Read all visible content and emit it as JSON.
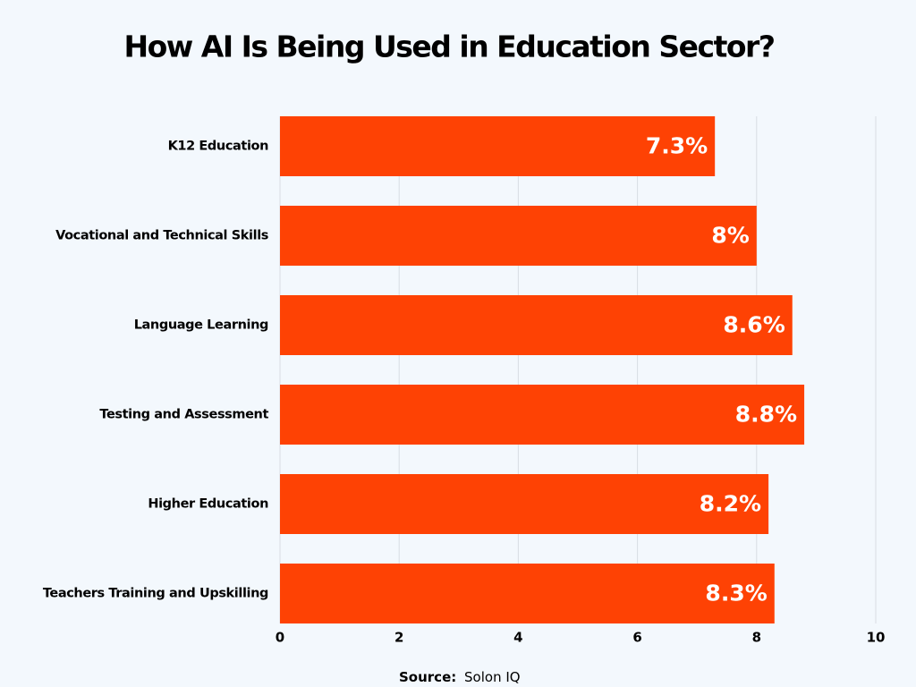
{
  "chart_data": {
    "type": "bar",
    "orientation": "horizontal",
    "title": "How AI Is Being Used in Education Sector?",
    "categories": [
      "K12 Education",
      "Vocational and Technical Skills",
      "Language Learning",
      "Testing and Assessment",
      "Higher Education",
      "Teachers Training and Upskilling"
    ],
    "values": [
      7.3,
      8,
      8.6,
      8.8,
      8.2,
      8.3
    ],
    "value_labels": [
      "7.3%",
      "8%",
      "8.6%",
      "8.8%",
      "8.2%",
      "8.3%"
    ],
    "color": "#fe4204",
    "xlim": [
      0,
      10
    ],
    "xticks": [
      0,
      2,
      4,
      6,
      8,
      10
    ],
    "grid": true,
    "source": {
      "label": "Source:",
      "text": "Solon IQ"
    }
  }
}
